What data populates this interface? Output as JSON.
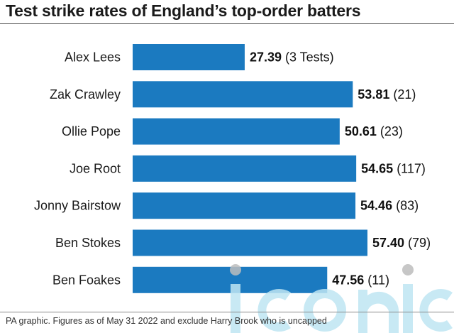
{
  "title": "Test strike rates of England’s top-order batters",
  "footnote": "PA graphic. Figures as of May 31 2022 and exclude Harry Brook who is uncapped",
  "watermark_text": "iconic",
  "colors": {
    "bar": "#1b7ac0",
    "text": "#1a1a1a",
    "watermark": "#bfe6f3"
  },
  "chart_data": {
    "type": "bar",
    "orientation": "horizontal",
    "title": "Test strike rates of England’s top-order batters",
    "categories": [
      "Alex Lees",
      "Zak Crawley",
      "Ollie Pope",
      "Joe Root",
      "Jonny Bairstow",
      "Ben Stokes",
      "Ben Foakes"
    ],
    "values": [
      27.39,
      53.81,
      50.61,
      54.65,
      54.46,
      57.4,
      47.56
    ],
    "value_labels": [
      "27.39",
      "53.81",
      "50.61",
      "54.65",
      "54.46",
      "57.40",
      "47.56"
    ],
    "annotations": [
      "(3 Tests)",
      "(21)",
      "(23)",
      "(117)",
      "(83)",
      "(79)",
      "(11)"
    ],
    "xlim": [
      0,
      57.4
    ],
    "grid": false,
    "legend": "none"
  }
}
